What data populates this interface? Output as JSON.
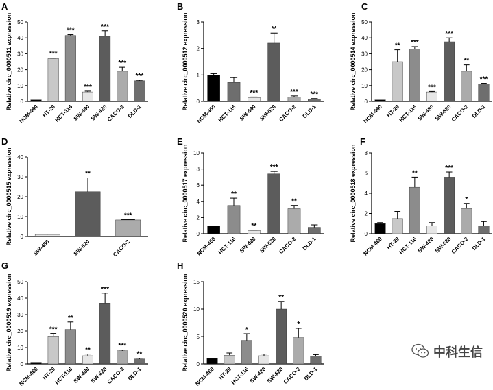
{
  "chart_data": [
    {
      "type": "bar",
      "panel": "A",
      "ylabel": "Relative circ_0000511 expression",
      "ylim": [
        0,
        50
      ],
      "yticks": [
        0,
        10,
        20,
        30,
        40,
        50
      ],
      "categories": [
        "NCM-460",
        "HT-29",
        "HCT-116",
        "SW-480",
        "SW-620",
        "CACO-2",
        "DLD-1"
      ],
      "values": [
        1,
        27,
        41.5,
        6,
        41,
        19,
        13
      ],
      "errors": [
        0,
        0.3,
        0.5,
        0.5,
        3.5,
        2.5,
        0.4
      ],
      "significance": [
        "",
        "***",
        "***",
        "***",
        "***",
        "***",
        "***"
      ],
      "colors": [
        "#000000",
        "#c8c8c8",
        "#8c8c8c",
        "#e6e6e6",
        "#5c5c5c",
        "#ababab",
        "#6e6e6e"
      ]
    },
    {
      "type": "bar",
      "panel": "B",
      "ylabel": "Relative circ_0000512 expression",
      "ylim": [
        0,
        3
      ],
      "yticks": [
        0,
        1,
        2,
        3
      ],
      "categories": [
        "NCM-460",
        "HCT-116",
        "SW-480",
        "SW-620",
        "CACO-2",
        "DLD-1"
      ],
      "values": [
        1,
        0.72,
        0.15,
        2.2,
        0.16,
        0.09
      ],
      "errors": [
        0.05,
        0.18,
        0.02,
        0.38,
        0.05,
        0.02
      ],
      "significance": [
        "",
        "",
        "***",
        "**",
        "***",
        "***"
      ],
      "colors": [
        "#000000",
        "#6e6e6e",
        "#e6e6e6",
        "#5c5c5c",
        "#ababab",
        "#6e6e6e"
      ]
    },
    {
      "type": "bar",
      "panel": "C",
      "ylabel": "Relative circ_0000514 expression",
      "ylim": [
        0,
        50
      ],
      "yticks": [
        0,
        10,
        20,
        30,
        40,
        50
      ],
      "categories": [
        "NCM-460",
        "HT-29",
        "HCT-116",
        "SW-480",
        "SW-620",
        "CACO-2",
        "DLD-1"
      ],
      "values": [
        1,
        25,
        33,
        6,
        37.5,
        19,
        11
      ],
      "errors": [
        0,
        7.5,
        1.5,
        0.3,
        2.5,
        4,
        0.4
      ],
      "significance": [
        "",
        "**",
        "***",
        "***",
        "***",
        "**",
        "***"
      ],
      "colors": [
        "#000000",
        "#c8c8c8",
        "#8c8c8c",
        "#e6e6e6",
        "#5c5c5c",
        "#ababab",
        "#6e6e6e"
      ]
    },
    {
      "type": "bar",
      "panel": "D",
      "ylabel": "Relative circ_0000515 expression",
      "ylim": [
        0,
        40
      ],
      "yticks": [
        0,
        10,
        20,
        30,
        40
      ],
      "categories": [
        "SW-480",
        "SW-620",
        "CACO-2"
      ],
      "values": [
        1,
        22.5,
        8.3
      ],
      "errors": [
        0.2,
        7,
        0.2
      ],
      "significance": [
        "",
        "**",
        "***"
      ],
      "colors": [
        "#e6e6e6",
        "#5c5c5c",
        "#ababab"
      ]
    },
    {
      "type": "bar",
      "panel": "E",
      "ylabel": "Relative circ_0000517 expression",
      "ylim": [
        0,
        10
      ],
      "yticks": [
        0,
        2,
        4,
        6,
        8,
        10
      ],
      "categories": [
        "NCM-460",
        "HCT-116",
        "SW-480",
        "SW-620",
        "CACO-2",
        "DLD-1"
      ],
      "values": [
        1,
        3.5,
        0.4,
        7.4,
        3.1,
        0.8
      ],
      "errors": [
        0,
        0.9,
        0.05,
        0.3,
        0.4,
        0.3
      ],
      "significance": [
        "",
        "**",
        "**",
        "***",
        "**",
        ""
      ],
      "colors": [
        "#000000",
        "#8c8c8c",
        "#e6e6e6",
        "#5c5c5c",
        "#ababab",
        "#6e6e6e"
      ]
    },
    {
      "type": "bar",
      "panel": "F",
      "ylabel": "Relative circ_0000518 expression",
      "ylim": [
        0,
        8
      ],
      "yticks": [
        0,
        2,
        4,
        6,
        8
      ],
      "categories": [
        "NCM-460",
        "HT-29",
        "HCT-116",
        "SW-480",
        "SW-620",
        "CACO-2",
        "DLD-1"
      ],
      "values": [
        1,
        1.5,
        4.6,
        0.8,
        5.6,
        2.5,
        0.8
      ],
      "errors": [
        0.1,
        0.7,
        1,
        0.3,
        0.5,
        0.5,
        0.4
      ],
      "significance": [
        "",
        "",
        "**",
        "",
        "***",
        "*",
        ""
      ],
      "colors": [
        "#000000",
        "#c8c8c8",
        "#8c8c8c",
        "#e6e6e6",
        "#5c5c5c",
        "#ababab",
        "#6e6e6e"
      ]
    },
    {
      "type": "bar",
      "panel": "G",
      "ylabel": "Relative circ_0000519 expression",
      "ylim": [
        0,
        50
      ],
      "yticks": [
        0,
        10,
        20,
        30,
        40,
        50
      ],
      "categories": [
        "NCM-460",
        "HT-29",
        "HCT-116",
        "SW-480",
        "SW-620",
        "CACO-2",
        "DLD-1"
      ],
      "values": [
        1,
        17,
        21,
        5,
        37,
        8,
        3
      ],
      "errors": [
        0,
        1.5,
        4.5,
        1,
        6,
        0.5,
        0.5
      ],
      "significance": [
        "",
        "***",
        "**",
        "**",
        "***",
        "***",
        "**"
      ],
      "colors": [
        "#000000",
        "#c8c8c8",
        "#8c8c8c",
        "#e6e6e6",
        "#5c5c5c",
        "#ababab",
        "#6e6e6e"
      ]
    },
    {
      "type": "bar",
      "panel": "H",
      "ylabel": "Relative circ_0000520 expression",
      "ylim": [
        0,
        15
      ],
      "yticks": [
        0,
        5,
        10,
        15
      ],
      "categories": [
        "NCM-460",
        "HT-29",
        "HCT-116",
        "SW-480",
        "SW-620",
        "CACO-2",
        "DLD-1"
      ],
      "values": [
        1,
        1.6,
        4.3,
        1.5,
        10,
        4.8,
        1.4
      ],
      "errors": [
        0,
        0.4,
        1.2,
        0.3,
        1.4,
        1.7,
        0.3
      ],
      "significance": [
        "",
        "",
        "*",
        "",
        "**",
        "*",
        ""
      ],
      "colors": [
        "#000000",
        "#c8c8c8",
        "#8c8c8c",
        "#e6e6e6",
        "#5c5c5c",
        "#ababab",
        "#6e6e6e"
      ]
    }
  ],
  "watermark": {
    "text": "中科生信",
    "icon": "wechat-icon"
  }
}
